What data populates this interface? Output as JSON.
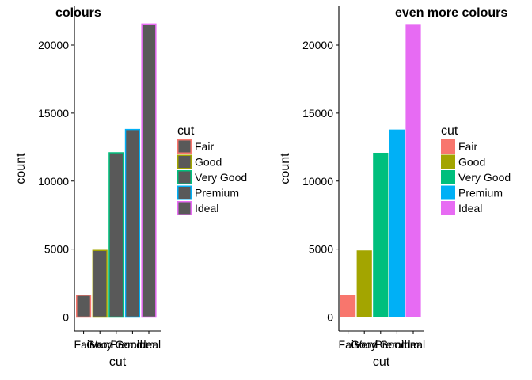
{
  "chart_data": [
    {
      "type": "bar",
      "style": "outline",
      "title": "colours",
      "xlabel": "cut",
      "ylabel": "count",
      "categories": [
        "Fair",
        "Good",
        "Very Good",
        "Premium",
        "Ideal"
      ],
      "values": [
        1610,
        4906,
        12082,
        13791,
        21551
      ],
      "ylim": [
        0,
        22500
      ],
      "yticks": [
        0,
        5000,
        10000,
        15000,
        20000
      ],
      "fill_color": "#595959",
      "legend": {
        "title": "cut",
        "position": "right"
      }
    },
    {
      "type": "bar",
      "style": "filled",
      "title": "even more colours",
      "xlabel": "cut",
      "ylabel": "count",
      "categories": [
        "Fair",
        "Good",
        "Very Good",
        "Premium",
        "Ideal"
      ],
      "values": [
        1610,
        4906,
        12082,
        13791,
        21551
      ],
      "ylim": [
        0,
        22500
      ],
      "yticks": [
        0,
        5000,
        10000,
        15000,
        20000
      ],
      "legend": {
        "title": "cut",
        "position": "right"
      }
    }
  ],
  "colors": [
    "#F8766D",
    "#A3A500",
    "#00BF7D",
    "#00B0F6",
    "#E76BF3"
  ]
}
